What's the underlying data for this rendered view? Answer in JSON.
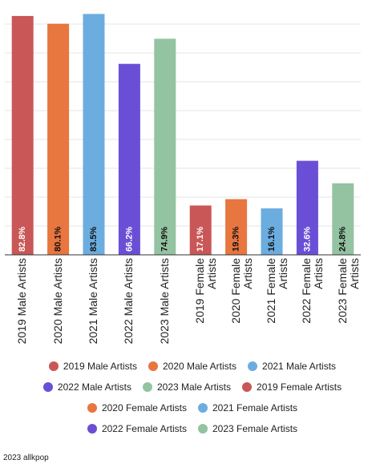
{
  "chart_data": {
    "type": "bar",
    "categories": [
      "2019 Male Artists",
      "2020 Male Artists",
      "2021 Male Artists",
      "2022 Male Artists",
      "2023 Male Artists",
      "2019 Female Artists",
      "2020 Female Artists",
      "2021 Female Artists",
      "2022 Female Artists",
      "2023 Female Artists"
    ],
    "values": [
      82.8,
      80.1,
      83.5,
      66.2,
      74.9,
      17.1,
      19.3,
      16.1,
      32.6,
      24.8
    ],
    "value_labels": [
      "82.8%",
      "80.1%",
      "83.5%",
      "66.2%",
      "74.9%",
      "17.1%",
      "19.3%",
      "16.1%",
      "32.6%",
      "24.8%"
    ],
    "colors": [
      "#c95757",
      "#e8763f",
      "#6cade0",
      "#6a4fd6",
      "#93c3a1",
      "#c95757",
      "#e8763f",
      "#6cade0",
      "#6a4fd6",
      "#93c3a1"
    ],
    "ylim": [
      0,
      85
    ],
    "yticks": [
      0,
      10,
      20,
      30,
      40,
      50,
      60,
      70,
      80
    ],
    "grid": true,
    "source": "2023 allkpop"
  }
}
